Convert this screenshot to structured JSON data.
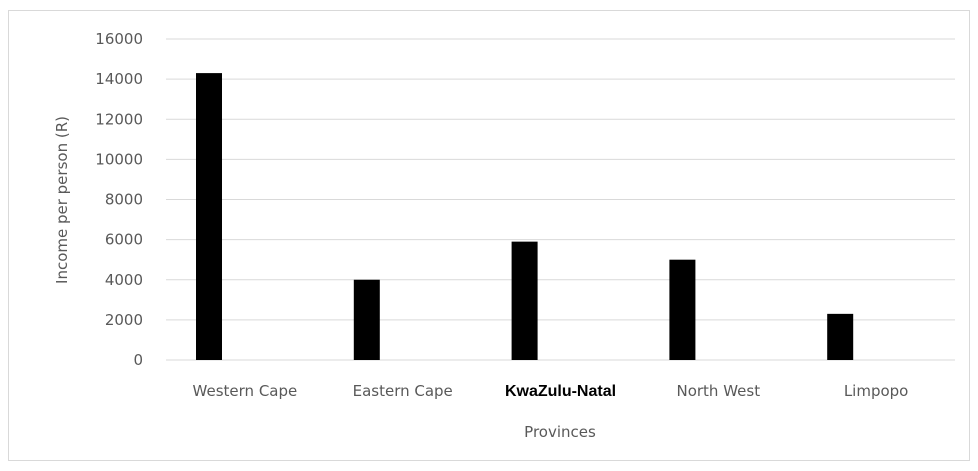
{
  "chart_data": {
    "type": "bar",
    "categories": [
      "Western Cape",
      "Eastern Cape",
      "KwaZulu-Natal",
      "North West",
      "Limpopo"
    ],
    "series": [
      {
        "values": [
          14300,
          4000,
          5900,
          5000,
          2300
        ],
        "color": "#000000"
      }
    ],
    "title": "",
    "xlabel": "Provinces",
    "ylabel": "Income per person (R)",
    "ylim": [
      0,
      16000
    ],
    "yticks": [
      0,
      2000,
      4000,
      6000,
      8000,
      10000,
      12000,
      14000,
      16000
    ],
    "grid": "horizontal",
    "gridline_color": "#d9d9d9",
    "legend": "none"
  }
}
